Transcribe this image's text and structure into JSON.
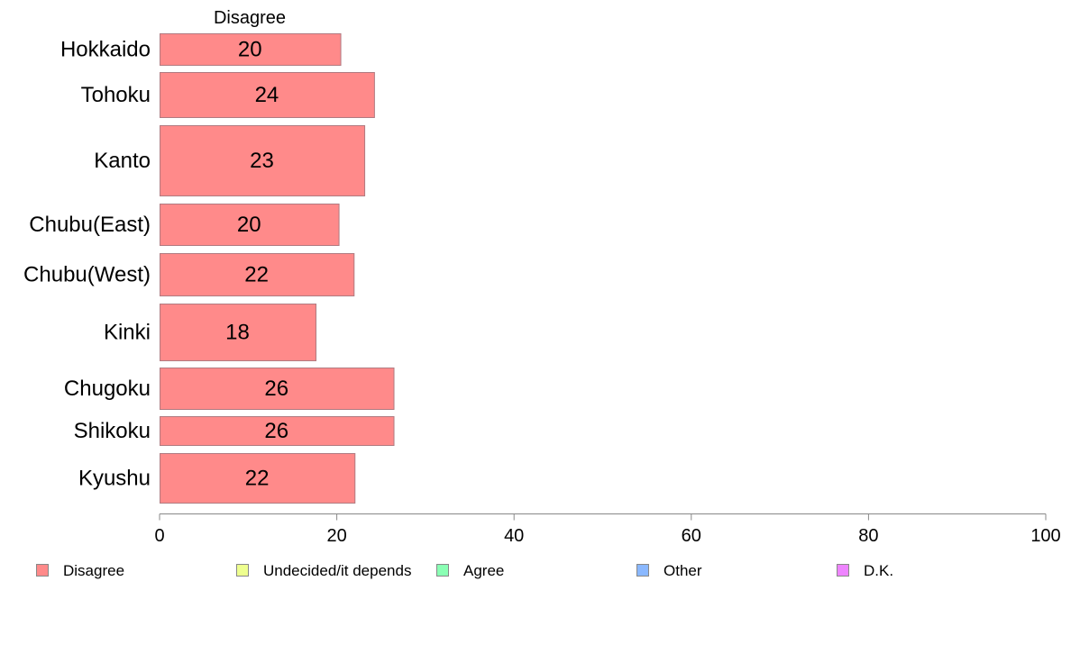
{
  "chart_data": {
    "type": "bar",
    "orientation": "horizontal",
    "panel_title": "Disagree",
    "categories": [
      "Hokkaido",
      "Tohoku",
      "Kanto",
      "Chubu(East)",
      "Chubu(West)",
      "Kinki",
      "Chugoku",
      "Shikoku",
      "Kyushu"
    ],
    "series": [
      {
        "name": "Disagree",
        "values": [
          20.4,
          24.2,
          23.1,
          20.2,
          21.9,
          17.6,
          26.4,
          26.4,
          22.0
        ],
        "labels": [
          "20",
          "24",
          "23",
          "20",
          "22",
          "18",
          "26",
          "26",
          "22"
        ]
      }
    ],
    "xlim": [
      0,
      100
    ],
    "xticks": [
      0,
      20,
      40,
      60,
      80,
      100
    ],
    "legend": {
      "placement": "bottom",
      "items": [
        {
          "name": "Disagree",
          "color": "#ff8a8a"
        },
        {
          "name": "Undecided/it depends",
          "color": "#eeff8f"
        },
        {
          "name": "Agree",
          "color": "#8affb4"
        },
        {
          "name": "Other",
          "color": "#8ab8ff"
        },
        {
          "name": "D.K.",
          "color": "#ee84ff"
        }
      ]
    },
    "colors": {
      "bar_fill": "#ff8a8a",
      "bar_stroke": "#b07a80",
      "axis": "#888888"
    }
  }
}
